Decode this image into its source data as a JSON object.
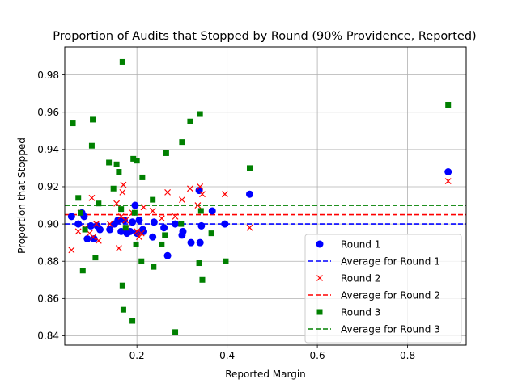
{
  "chart_data": {
    "type": "scatter",
    "title": "Proportion of Audits that Stopped by Round (90% Providence, Reported)",
    "xlabel": "Reported Margin",
    "ylabel": "Proportion that Stopped",
    "xlim": [
      0.04,
      0.93
    ],
    "ylim": [
      0.835,
      0.995
    ],
    "xticks": [
      0.2,
      0.4,
      0.6,
      0.8
    ],
    "xtick_labels": [
      "0.2",
      "0.4",
      "0.6",
      "0.8"
    ],
    "yticks": [
      0.84,
      0.86,
      0.88,
      0.9,
      0.92,
      0.94,
      0.96,
      0.98
    ],
    "ytick_labels": [
      "0.84",
      "0.86",
      "0.88",
      "0.90",
      "0.92",
      "0.94",
      "0.96",
      "0.98"
    ],
    "grid": true,
    "legend_position": "lower-right",
    "series": [
      {
        "name": "Round 1",
        "marker": "circle",
        "color": "#0000ff",
        "points": [
          [
            0.055,
            0.904
          ],
          [
            0.07,
            0.9
          ],
          [
            0.078,
            0.906
          ],
          [
            0.083,
            0.904
          ],
          [
            0.09,
            0.892
          ],
          [
            0.098,
            0.899
          ],
          [
            0.105,
            0.892
          ],
          [
            0.112,
            0.899
          ],
          [
            0.118,
            0.897
          ],
          [
            0.14,
            0.897
          ],
          [
            0.15,
            0.9
          ],
          [
            0.158,
            0.902
          ],
          [
            0.165,
            0.896
          ],
          [
            0.172,
            0.902
          ],
          [
            0.178,
            0.895
          ],
          [
            0.185,
            0.896
          ],
          [
            0.19,
            0.901
          ],
          [
            0.196,
            0.91
          ],
          [
            0.2,
            0.895
          ],
          [
            0.205,
            0.902
          ],
          [
            0.213,
            0.897
          ],
          [
            0.215,
            0.896
          ],
          [
            0.235,
            0.893
          ],
          [
            0.238,
            0.901
          ],
          [
            0.26,
            0.898
          ],
          [
            0.268,
            0.883
          ],
          [
            0.285,
            0.9
          ],
          [
            0.3,
            0.894
          ],
          [
            0.302,
            0.896
          ],
          [
            0.32,
            0.89
          ],
          [
            0.338,
            0.918
          ],
          [
            0.34,
            0.89
          ],
          [
            0.343,
            0.899
          ],
          [
            0.367,
            0.907
          ],
          [
            0.395,
            0.9
          ],
          [
            0.45,
            0.916
          ],
          [
            0.89,
            0.928
          ]
        ]
      },
      {
        "name": "Average for Round 1",
        "type": "hline",
        "color": "#0000ff",
        "value": 0.9
      },
      {
        "name": "Round 2",
        "marker": "x",
        "color": "#ff0000",
        "points": [
          [
            0.055,
            0.886
          ],
          [
            0.07,
            0.896
          ],
          [
            0.075,
            0.906
          ],
          [
            0.085,
            0.898
          ],
          [
            0.095,
            0.895
          ],
          [
            0.1,
            0.914
          ],
          [
            0.103,
            0.893
          ],
          [
            0.11,
            0.9
          ],
          [
            0.115,
            0.891
          ],
          [
            0.14,
            0.9
          ],
          [
            0.155,
            0.911
          ],
          [
            0.16,
            0.887
          ],
          [
            0.165,
            0.904
          ],
          [
            0.168,
            0.917
          ],
          [
            0.17,
            0.921
          ],
          [
            0.175,
            0.902
          ],
          [
            0.178,
            0.898
          ],
          [
            0.19,
            0.906
          ],
          [
            0.2,
            0.896
          ],
          [
            0.205,
            0.893
          ],
          [
            0.21,
            0.895
          ],
          [
            0.215,
            0.909
          ],
          [
            0.235,
            0.907
          ],
          [
            0.255,
            0.903
          ],
          [
            0.268,
            0.917
          ],
          [
            0.285,
            0.904
          ],
          [
            0.3,
            0.913
          ],
          [
            0.318,
            0.919
          ],
          [
            0.335,
            0.91
          ],
          [
            0.34,
            0.92
          ],
          [
            0.345,
            0.916
          ],
          [
            0.395,
            0.916
          ],
          [
            0.45,
            0.898
          ],
          [
            0.89,
            0.923
          ]
        ]
      },
      {
        "name": "Average for Round 2",
        "type": "hline",
        "color": "#ff0000",
        "value": 0.905
      },
      {
        "name": "Round 3",
        "marker": "square",
        "color": "#008000",
        "points": [
          [
            0.058,
            0.954
          ],
          [
            0.07,
            0.914
          ],
          [
            0.075,
            0.906
          ],
          [
            0.08,
            0.875
          ],
          [
            0.085,
            0.897
          ],
          [
            0.1,
            0.942
          ],
          [
            0.102,
            0.956
          ],
          [
            0.108,
            0.882
          ],
          [
            0.115,
            0.911
          ],
          [
            0.138,
            0.933
          ],
          [
            0.148,
            0.919
          ],
          [
            0.155,
            0.932
          ],
          [
            0.16,
            0.928
          ],
          [
            0.165,
            0.908
          ],
          [
            0.168,
            0.867
          ],
          [
            0.168,
            0.987
          ],
          [
            0.17,
            0.854
          ],
          [
            0.175,
            0.898
          ],
          [
            0.19,
            0.848
          ],
          [
            0.192,
            0.935
          ],
          [
            0.195,
            0.906
          ],
          [
            0.198,
            0.889
          ],
          [
            0.2,
            0.934
          ],
          [
            0.21,
            0.88
          ],
          [
            0.212,
            0.925
          ],
          [
            0.235,
            0.913
          ],
          [
            0.237,
            0.877
          ],
          [
            0.255,
            0.889
          ],
          [
            0.262,
            0.894
          ],
          [
            0.265,
            0.938
          ],
          [
            0.285,
            0.842
          ],
          [
            0.298,
            0.9
          ],
          [
            0.3,
            0.944
          ],
          [
            0.318,
            0.955
          ],
          [
            0.338,
            0.879
          ],
          [
            0.34,
            0.959
          ],
          [
            0.342,
            0.907
          ],
          [
            0.345,
            0.87
          ],
          [
            0.365,
            0.895
          ],
          [
            0.397,
            0.88
          ],
          [
            0.45,
            0.93
          ],
          [
            0.89,
            0.964
          ]
        ]
      },
      {
        "name": "Average for Round 3",
        "type": "hline",
        "color": "#008000",
        "value": 0.91
      }
    ]
  }
}
